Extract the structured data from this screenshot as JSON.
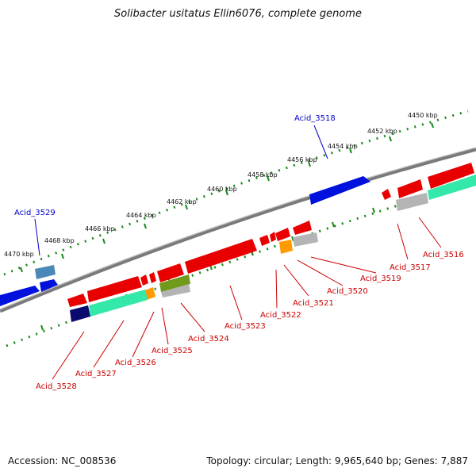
{
  "title": "Solibacter usitatus Ellin6076, complete genome",
  "footer": {
    "accession": "Accession: NC_008536",
    "summary": "Topology: circular; Length: 9,965,640 bp; Genes: 7,887"
  },
  "colors": {
    "backbone": "#7a7a7a",
    "tick": "#1a8a1a",
    "forward_label": "#0000cc",
    "reverse_label": "#cc0000",
    "red": "#e80000",
    "blue": "#0010dd",
    "teal": "#33e8a8",
    "gray": "#b4b4b4",
    "orange": "#ff9a00",
    "olive": "#6f9a1a",
    "navy": "#0a0a70",
    "steel": "#4a88b8"
  },
  "tick_labels": [
    "4450 kbp",
    "4452 kbp",
    "4454 kbp",
    "4456 kbp",
    "4458 kbp",
    "4460 kbp",
    "4462 kbp",
    "4464 kbp",
    "4466 kbp",
    "4468 kbp",
    "4470 kbp"
  ],
  "forward_labels": [
    "Acid_3518",
    "Acid_3529"
  ],
  "reverse_labels": [
    "Acid_3516",
    "Acid_3517",
    "Acid_3519",
    "Acid_3520",
    "Acid_3521",
    "Acid_3522",
    "Acid_3523",
    "Acid_3524",
    "Acid_3525",
    "Acid_3526",
    "Acid_3527",
    "Acid_3528"
  ]
}
